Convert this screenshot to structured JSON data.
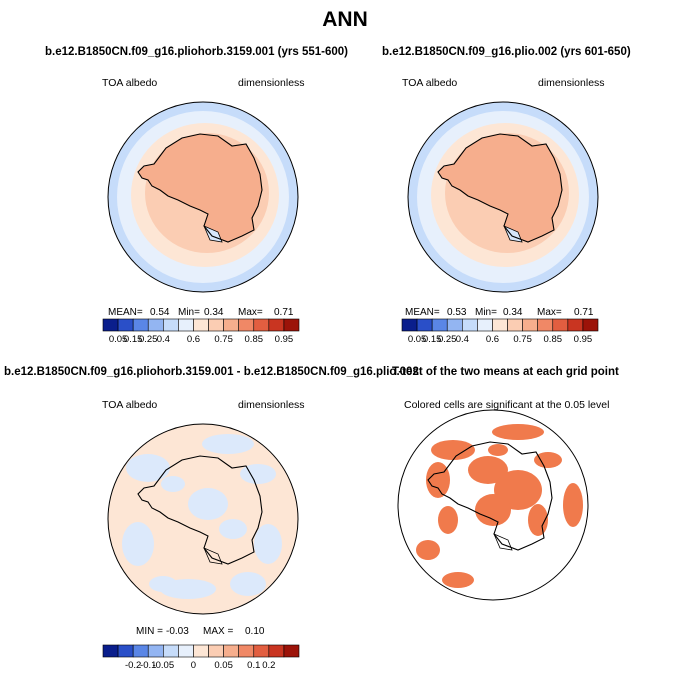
{
  "main_title": "ANN",
  "panels": [
    {
      "title": "b.e12.B1850CN.f09_g16.pliohorb.3159.001 (yrs 551-600)",
      "left_label": "TOA albedo",
      "right_label": "dimensionless",
      "stats": {
        "mean_label": "MEAN=",
        "mean": "0.54",
        "min_label": "Min=",
        "min": "0.34",
        "max_label": "Max=",
        "max": "0.71"
      }
    },
    {
      "title": "b.e12.B1850CN.f09_g16.plio.002 (yrs 601-650)",
      "left_label": "TOA albedo",
      "right_label": "dimensionless",
      "stats": {
        "mean_label": "MEAN=",
        "mean": "0.53",
        "min_label": "Min=",
        "min": "0.34",
        "max_label": "Max=",
        "max": "0.71"
      }
    },
    {
      "title": "b.e12.B1850CN.f09_g16.pliohorb.3159.001 - b.e12.B1850CN.f09_g16.plio.002",
      "left_label": "TOA albedo",
      "right_label": "dimensionless",
      "stats": {
        "min_label": "MIN =",
        "min": "-0.03",
        "max_label": "MAX =",
        "max": "0.10"
      }
    },
    {
      "title": "T-test of the two means at each grid point",
      "subtitle": "Colored cells are significant at the 0.05 level"
    }
  ],
  "colorbars": {
    "abs_colors": [
      "#0a1e8c",
      "#2a4fc8",
      "#5a86e6",
      "#93b5f2",
      "#c6dcfa",
      "#e7f0fc",
      "#fde6d5",
      "#fbcdb3",
      "#f6ae8d",
      "#f08866",
      "#e25e40",
      "#c93521",
      "#9c1309"
    ],
    "abs_labels": [
      "0.05",
      "0.15",
      "0.25",
      "0.4",
      "0.6",
      "0.75",
      "0.85",
      "0.95"
    ],
    "diff_colors": [
      "#0a1e8c",
      "#2a4fc8",
      "#5a86e6",
      "#93b5f2",
      "#c6dcfa",
      "#e7f0fc",
      "#fde6d5",
      "#fbcdb3",
      "#f6ae8d",
      "#f08866",
      "#e25e40",
      "#c93521",
      "#9c1309"
    ],
    "diff_labels": [
      "-0.2",
      "-0.1",
      "-0.05",
      "0",
      "0.05",
      "0.1",
      "0.2"
    ]
  },
  "chart_data": [
    {
      "type": "heatmap",
      "title": "b.e12.B1850CN.f09_g16.pliohorb.3159.001 (yrs 551-600)",
      "variable": "TOA albedo",
      "units": "dimensionless",
      "projection": "south polar stereographic",
      "levels": [
        0.05,
        0.1,
        0.15,
        0.2,
        0.25,
        0.3,
        0.4,
        0.5,
        0.6,
        0.7,
        0.75,
        0.8,
        0.85,
        0.9,
        0.95
      ],
      "mean": 0.54,
      "min": 0.34,
      "max": 0.71
    },
    {
      "type": "heatmap",
      "title": "b.e12.B1850CN.f09_g16.plio.002 (yrs 601-650)",
      "variable": "TOA albedo",
      "units": "dimensionless",
      "projection": "south polar stereographic",
      "levels": [
        0.05,
        0.1,
        0.15,
        0.2,
        0.25,
        0.3,
        0.4,
        0.5,
        0.6,
        0.7,
        0.75,
        0.8,
        0.85,
        0.9,
        0.95
      ],
      "mean": 0.53,
      "min": 0.34,
      "max": 0.71
    },
    {
      "type": "heatmap",
      "title": "b.e12.B1850CN.f09_g16.pliohorb.3159.001 - b.e12.B1850CN.f09_g16.plio.002",
      "variable": "TOA albedo",
      "units": "dimensionless",
      "projection": "south polar stereographic",
      "levels": [
        -0.2,
        -0.15,
        -0.1,
        -0.07,
        -0.05,
        -0.02,
        0,
        0.02,
        0.05,
        0.07,
        0.1,
        0.15,
        0.2
      ],
      "min": -0.03,
      "max": 0.1
    },
    {
      "type": "heatmap",
      "title": "T-test of the two means at each grid point",
      "note": "Colored cells are significant at the 0.05 level",
      "projection": "south polar stereographic",
      "significance_level": 0.05
    }
  ]
}
